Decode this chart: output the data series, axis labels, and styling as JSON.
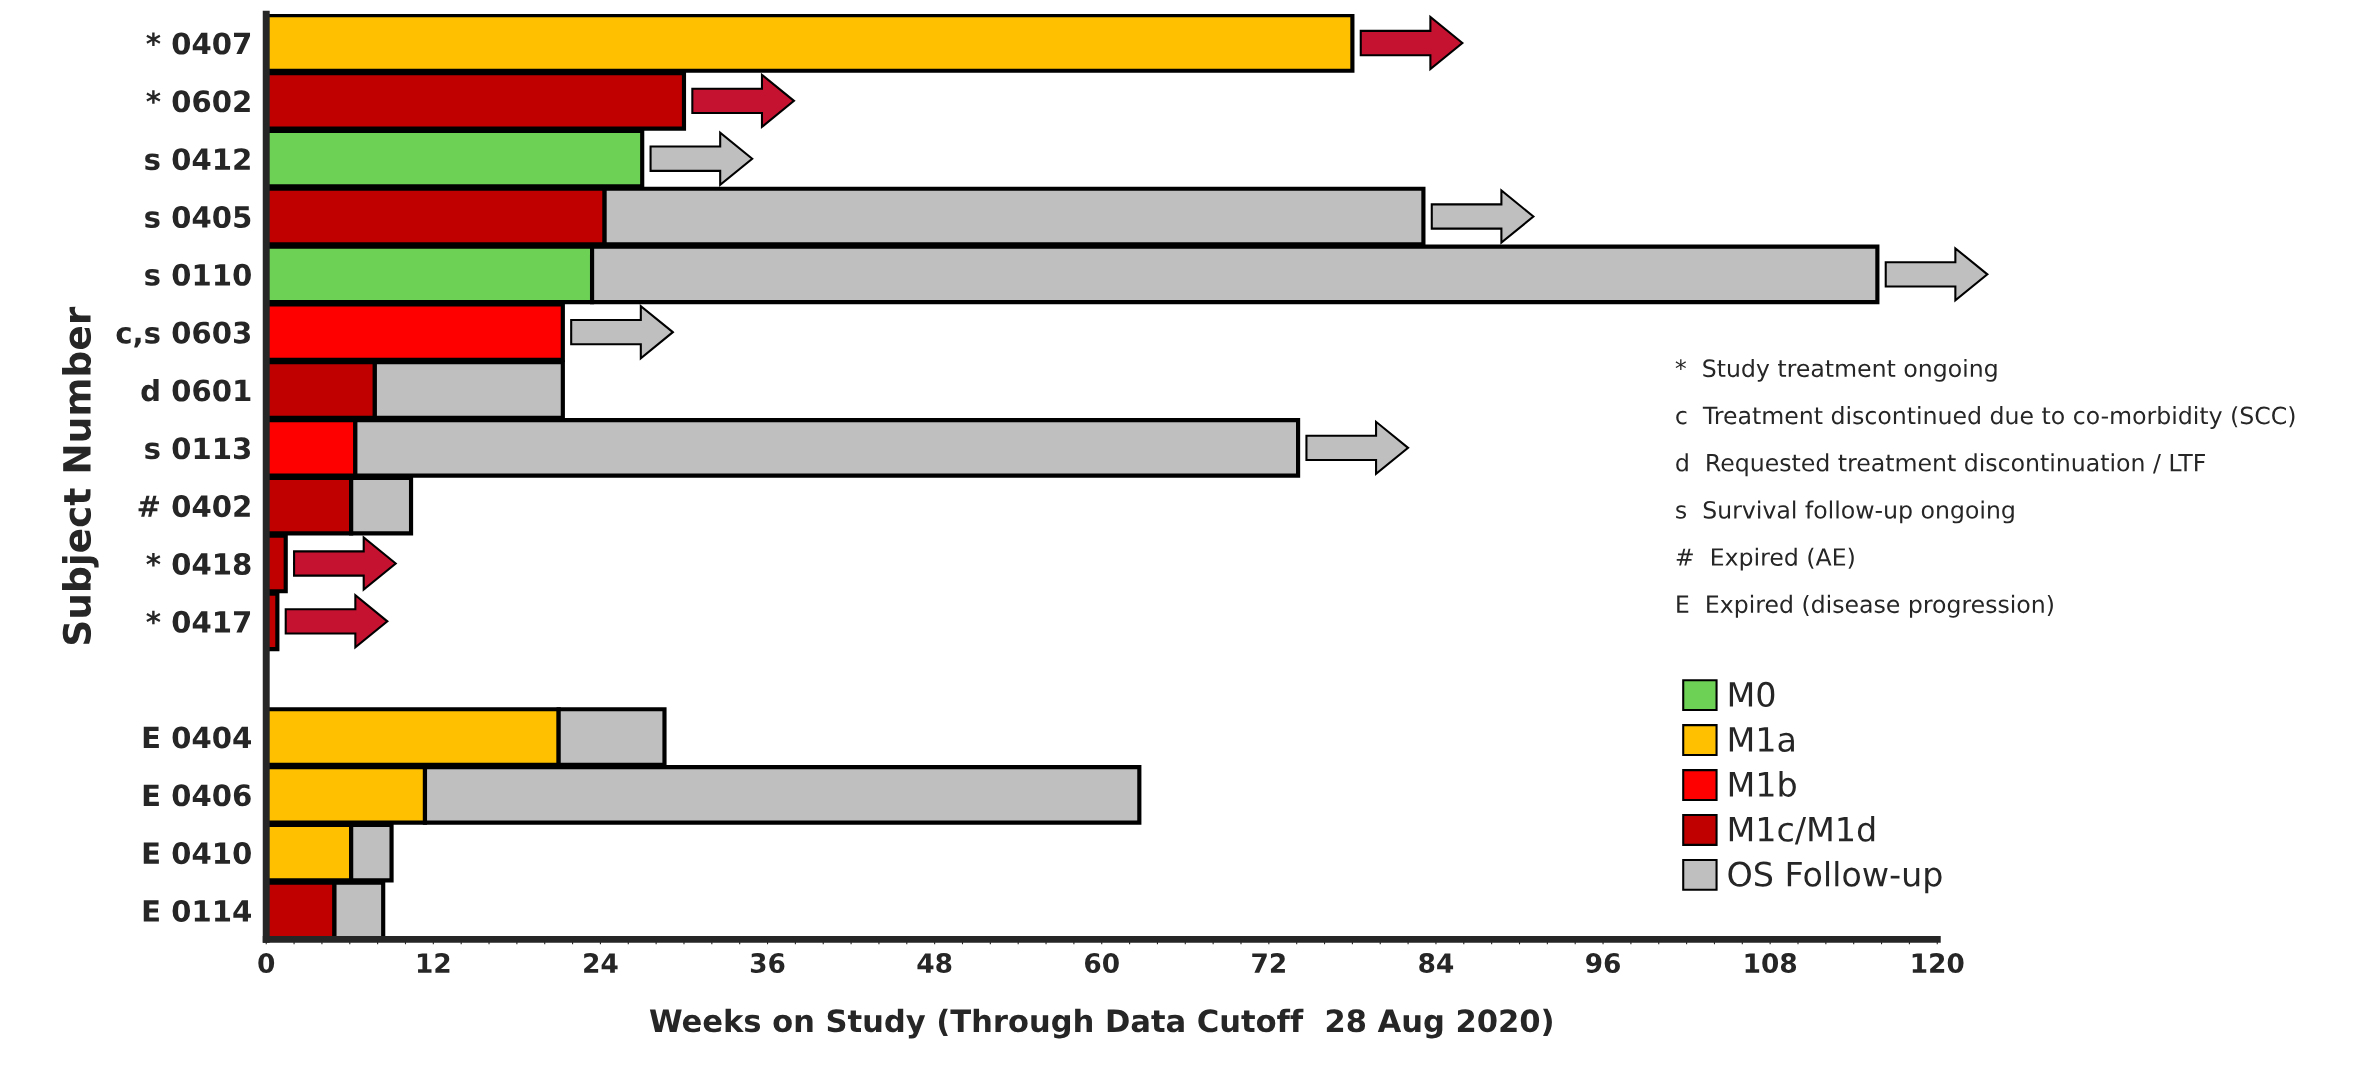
{
  "chart_data": {
    "type": "bar",
    "orientation": "horizontal",
    "stacked": true,
    "xlabel": "Weeks on Study (Through Data Cutoff  28 Aug 2020)",
    "ylabel": "Subject Number",
    "categories": [
      "* 0407",
      "* 0602",
      "s 0412",
      "s 0405",
      "s 0110",
      "c,s 0603",
      "d 0601",
      "s 0113",
      "# 0402",
      "* 0418",
      "* 0417",
      null,
      "E 0404",
      "E 0406",
      "E 0410",
      "E 0114"
    ],
    "series": [
      {
        "name": "M0",
        "color": "#6dd155",
        "values": [
          null,
          null,
          27,
          null,
          23.4,
          null,
          null,
          null,
          null,
          null,
          null,
          null,
          null,
          null,
          null,
          null
        ]
      },
      {
        "name": "M1a",
        "color": "#ffc000",
        "values": [
          78,
          null,
          null,
          null,
          null,
          null,
          null,
          null,
          null,
          null,
          null,
          null,
          21,
          11.4,
          6.1,
          null
        ]
      },
      {
        "name": "M1b",
        "color": "#ff0000",
        "values": [
          null,
          null,
          null,
          null,
          null,
          21.3,
          null,
          6.4,
          null,
          null,
          null,
          null,
          null,
          null,
          null,
          null
        ]
      },
      {
        "name": "M1c/M1d",
        "color": "#c00000",
        "values": [
          null,
          30,
          null,
          24.3,
          null,
          null,
          7.8,
          null,
          6.1,
          1.4,
          0.8,
          null,
          null,
          null,
          null,
          4.9
        ]
      },
      {
        "name": "OS Follow-up",
        "color": "#bfbfbf",
        "values": [
          null,
          null,
          null,
          58.8,
          92.3,
          null,
          13.5,
          67.7,
          4.3,
          null,
          null,
          null,
          7.6,
          51.3,
          2.9,
          3.5
        ]
      },
      {
        "type": "other",
        "colors": [
          "#c41230",
          "#c41230",
          "#bfbfbf",
          "#bfbfbf",
          "#bfbfbf",
          "#bfbfbf",
          null,
          "#bfbfbf",
          null,
          "#c41230",
          "#c41230",
          null,
          null,
          null,
          null,
          null
        ],
        "values": [
          null,
          null,
          null,
          null,
          null,
          null,
          null,
          null,
          null,
          null,
          null,
          null,
          null,
          null,
          null,
          null
        ]
      }
    ],
    "xlim": [
      0,
      120
    ],
    "xticks": [
      0,
      {
        "value": 2,
        "label": null
      },
      {
        "value": 4,
        "label": null
      },
      {
        "value": 6,
        "label": null
      },
      {
        "value": 8,
        "label": null
      },
      {
        "value": 10,
        "label": null
      },
      12,
      {
        "value": 14,
        "label": null
      },
      {
        "value": 16,
        "label": null
      },
      {
        "value": 18,
        "label": null
      },
      {
        "value": 20,
        "label": null
      },
      {
        "value": 22,
        "label": null
      },
      24,
      {
        "value": 26,
        "label": null
      },
      {
        "value": 28,
        "label": null
      },
      {
        "value": 30,
        "label": null
      },
      {
        "value": 32,
        "label": null
      },
      {
        "value": 34,
        "label": null
      },
      36,
      {
        "value": 38,
        "label": null
      },
      {
        "value": 40,
        "label": null
      },
      {
        "value": 42,
        "label": null
      },
      {
        "value": 44,
        "label": null
      },
      {
        "value": 46,
        "label": null
      },
      48,
      {
        "value": 50,
        "label": null
      },
      {
        "value": 52,
        "label": null
      },
      {
        "value": 54,
        "label": null
      },
      {
        "value": 56,
        "label": null
      },
      {
        "value": 58,
        "label": null
      },
      60,
      {
        "value": 62,
        "label": null
      },
      {
        "value": 64,
        "label": null
      },
      {
        "value": 66,
        "label": null
      },
      {
        "value": 68,
        "label": null
      },
      {
        "value": 70,
        "label": null
      },
      72,
      {
        "value": 74,
        "label": null
      },
      {
        "value": 76,
        "label": null
      },
      {
        "value": 78,
        "label": null
      },
      {
        "value": 80,
        "label": null
      },
      {
        "value": 82,
        "label": null
      },
      84,
      {
        "value": 86,
        "label": null
      },
      {
        "value": 88,
        "label": null
      },
      {
        "value": 90,
        "label": null
      },
      {
        "value": 92,
        "label": null
      },
      {
        "value": 94,
        "label": null
      },
      96,
      {
        "value": 98,
        "label": null
      },
      {
        "value": 100,
        "label": null
      },
      {
        "value": 102,
        "label": null
      },
      {
        "value": 104,
        "label": null
      },
      {
        "value": 106,
        "label": null
      },
      108,
      {
        "value": 110,
        "label": null
      },
      {
        "value": 112,
        "label": null
      },
      {
        "value": 114,
        "label": null
      },
      {
        "value": 116,
        "label": null
      },
      {
        "value": 118,
        "label": null
      },
      120
    ],
    "annotations": [
      "*  Study treatment ongoing",
      "c  Treatment discontinued due to co-morbidity (SCC)",
      "d  Requested treatment discontinuation / LTF",
      "s  Survival follow-up ongoing",
      "#  Expired (AE)",
      "E  Expired (disease progression)"
    ],
    "legend": "right",
    "grid": false
  }
}
